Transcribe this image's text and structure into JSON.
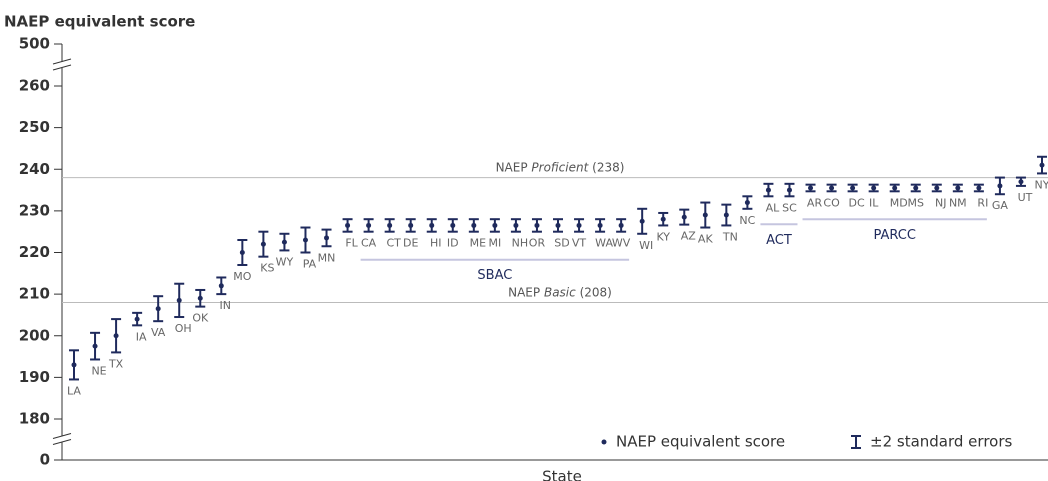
{
  "chart_data": {
    "type": "errorbar",
    "y_label": "NAEP equivalent score",
    "x_label": "State",
    "categories": [
      "LA",
      "NE",
      "TX",
      "IA",
      "VA",
      "OH",
      "OK",
      "IN",
      "MO",
      "KS",
      "WY",
      "PA",
      "MN",
      "FL",
      "CA",
      "CT",
      "DE",
      "HI",
      "ID",
      "ME",
      "MI",
      "NH",
      "OR",
      "SD",
      "VT",
      "WA",
      "WV",
      "WI",
      "KY",
      "AZ",
      "AK",
      "TN",
      "NC",
      "AL",
      "SC",
      "AR",
      "CO",
      "DC",
      "IL",
      "MD",
      "MS",
      "NJ",
      "NM",
      "RI",
      "GA",
      "UT",
      "NY"
    ],
    "series": [
      {
        "name": "NAEP equivalent score",
        "color": "#1f2a5c",
        "values": [
          193,
          197.5,
          200,
          204,
          206.5,
          208.5,
          209,
          212,
          220,
          222,
          222.5,
          223,
          223.5,
          226.5,
          226.5,
          226.5,
          226.5,
          226.5,
          226.5,
          226.5,
          226.5,
          226.5,
          226.5,
          226.5,
          226.5,
          226.5,
          226.5,
          227.5,
          228,
          228.5,
          229,
          229,
          232,
          235,
          235,
          235.5,
          235.5,
          235.5,
          235.5,
          235.5,
          235.5,
          235.5,
          235.5,
          235.5,
          236,
          237,
          241
        ]
      }
    ],
    "error_series": {
      "name": "±2 standard errors",
      "color": "#1f2a5c",
      "values": [
        3.5,
        3.2,
        4,
        1.5,
        3,
        4,
        2,
        2,
        3,
        3,
        2,
        3,
        2,
        1.5,
        1.5,
        1.5,
        1.5,
        1.5,
        1.5,
        1.5,
        1.5,
        1.5,
        1.5,
        1.5,
        1.5,
        1.5,
        1.5,
        3,
        1.5,
        1.8,
        3,
        2.5,
        1.5,
        1.5,
        1.5,
        0.8,
        0.8,
        0.8,
        0.8,
        0.8,
        0.8,
        0.8,
        0.8,
        0.8,
        2,
        1,
        2
      ]
    },
    "reference_lines": [
      {
        "prefix": "NAEP",
        "label": "Proficient",
        "value": {
          "value": 238,
          "label": "(238)"
        }
      },
      {
        "prefix": "NAEP",
        "label": "Basic",
        "value": {
          "value": 208,
          "label": "(208)"
        }
      }
    ],
    "groups": [
      {
        "label": "SBAC",
        "from": "CA",
        "to": "WV"
      },
      {
        "label": "ACT",
        "from": "AL",
        "to": "SC"
      },
      {
        "label": "PARCC",
        "from": "AR",
        "to": "RI"
      }
    ],
    "ylim": [
      0,
      500
    ],
    "yticks": [
      0,
      180,
      190,
      200,
      210,
      220,
      230,
      240,
      250,
      260,
      500
    ],
    "axis_breaks": [
      [
        0,
        180
      ],
      [
        260,
        500
      ]
    ],
    "legend": "bottom-right"
  }
}
